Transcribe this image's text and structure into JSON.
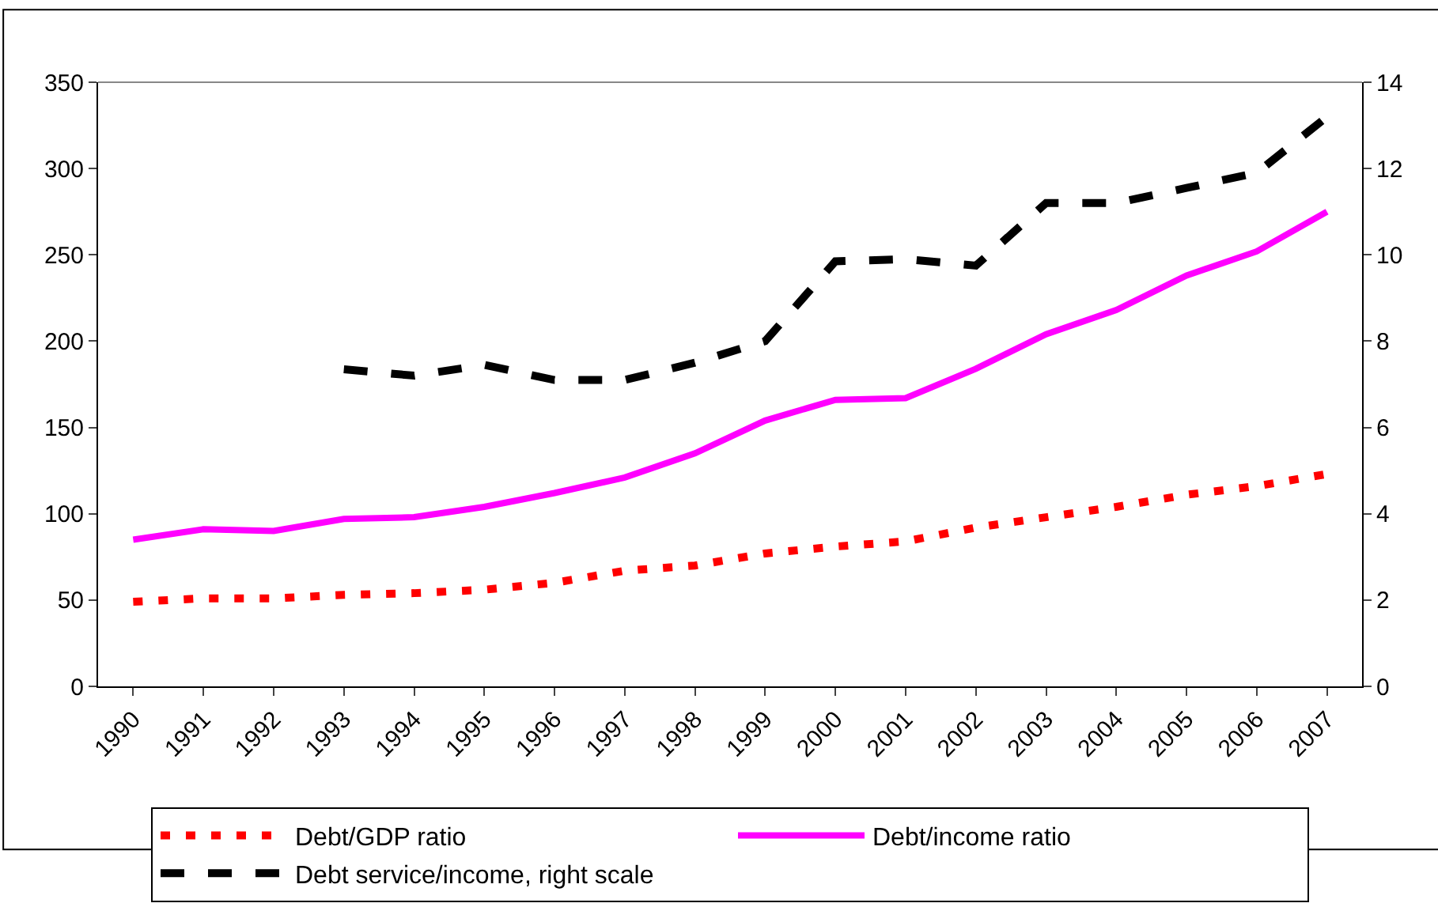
{
  "chart_data": {
    "type": "line",
    "categories": [
      "1990",
      "1991",
      "1992",
      "1993",
      "1994",
      "1995",
      "1996",
      "1997",
      "1998",
      "1999",
      "2000",
      "2001",
      "2002",
      "2003",
      "2004",
      "2005",
      "2006",
      "2007"
    ],
    "series": [
      {
        "name": "Debt/GDP ratio",
        "color": "#ff0000",
        "line_style": "dashed",
        "values": [
          49,
          51,
          51,
          53,
          54,
          56,
          60,
          67,
          70,
          77,
          81,
          84,
          92,
          98,
          104,
          111,
          116,
          123
        ]
      },
      {
        "name": "Debt/income ratio",
        "color": "#ff00ff",
        "line_style": "solid",
        "values": [
          85,
          91,
          90,
          97,
          98,
          104,
          112,
          121,
          135,
          154,
          166,
          167,
          184,
          204,
          218,
          238,
          252,
          275
        ]
      },
      {
        "name": "Debt service/income, right scale",
        "color": "#000000",
        "line_style": "dashed",
        "axis": "y2",
        "values": [
          null,
          null,
          null,
          7.35,
          7.2,
          7.45,
          7.1,
          7.1,
          7.5,
          8.0,
          9.85,
          9.9,
          9.75,
          11.2,
          11.2,
          11.55,
          11.9,
          13.2
        ]
      }
    ],
    "ylim": [
      0,
      350
    ],
    "yticks": [
      0,
      50,
      100,
      150,
      200,
      250,
      300,
      350
    ],
    "y2lim": [
      0,
      14
    ],
    "y2ticks": [
      0,
      2,
      4,
      6,
      8,
      10,
      12,
      14
    ],
    "grid": false,
    "legend": "bottom",
    "marker": "none"
  }
}
